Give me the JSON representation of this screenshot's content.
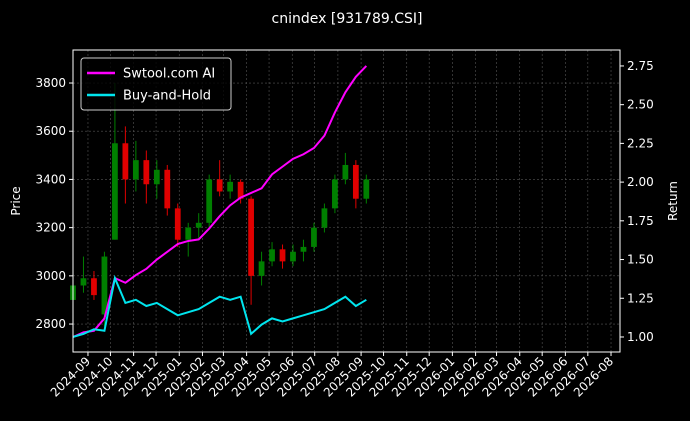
{
  "chart_data": {
    "type": "candlestick",
    "title": "cnindex [931789.CSI]",
    "ylabel": "Price",
    "y2label": "Return",
    "x": [
      "2024-08-12",
      "2024-08-26",
      "2024-09-09",
      "2024-09-23",
      "2024-10-07",
      "2024-10-21",
      "2024-11-04",
      "2024-11-18",
      "2024-12-02",
      "2024-12-16",
      "2024-12-30",
      "2025-01-13",
      "2025-01-27",
      "2025-02-10",
      "2025-02-24",
      "2025-03-10",
      "2025-03-24",
      "2025-04-07",
      "2025-04-21",
      "2025-05-05",
      "2025-05-19",
      "2025-06-02",
      "2025-06-16",
      "2025-06-30",
      "2025-07-14",
      "2025-07-28",
      "2025-08-11",
      "2025-08-25",
      "2025-09-08"
    ],
    "open": [
      2900,
      2960,
      2990,
      2840,
      3150,
      3550,
      3400,
      3480,
      3380,
      3440,
      3280,
      3150,
      3200,
      3220,
      3400,
      3350,
      3390,
      3320,
      3000,
      3060,
      3110,
      3060,
      3100,
      3120,
      3200,
      3280,
      3400,
      3460,
      3320
    ],
    "high": [
      3000,
      3080,
      3020,
      3100,
      3800,
      3620,
      3560,
      3520,
      3480,
      3460,
      3300,
      3220,
      3260,
      3420,
      3480,
      3420,
      3400,
      3330,
      3100,
      3140,
      3130,
      3130,
      3150,
      3220,
      3300,
      3420,
      3510,
      3480,
      3420
    ],
    "low": [
      2880,
      2930,
      2900,
      2790,
      3150,
      3300,
      3350,
      3300,
      3320,
      3250,
      3120,
      3080,
      3150,
      3200,
      3330,
      3320,
      3300,
      2880,
      2960,
      3040,
      3030,
      3040,
      3060,
      3100,
      3180,
      3260,
      3380,
      3280,
      3300
    ],
    "close": [
      2960,
      2990,
      2920,
      3080,
      3550,
      3400,
      3480,
      3380,
      3440,
      3280,
      3150,
      3200,
      3220,
      3400,
      3350,
      3390,
      3320,
      3000,
      3060,
      3110,
      3060,
      3100,
      3120,
      3200,
      3280,
      3400,
      3460,
      3320,
      3400
    ],
    "up_color": "#008000",
    "down_color": "#e00000",
    "series": [
      {
        "name": "Swtool.com AI",
        "color": "#ff00ff",
        "axis": "y2",
        "values": [
          1.0,
          1.03,
          1.04,
          1.12,
          1.38,
          1.35,
          1.4,
          1.44,
          1.5,
          1.55,
          1.6,
          1.62,
          1.63,
          1.7,
          1.78,
          1.85,
          1.9,
          1.93,
          1.96,
          2.05,
          2.1,
          2.15,
          2.18,
          2.22,
          2.3,
          2.45,
          2.58,
          2.68,
          2.75
        ]
      },
      {
        "name": "Buy-and-Hold",
        "color": "#00e5ee",
        "axis": "y2",
        "values": [
          1.0,
          1.02,
          1.05,
          1.04,
          1.38,
          1.22,
          1.24,
          1.2,
          1.22,
          1.18,
          1.14,
          1.16,
          1.18,
          1.22,
          1.26,
          1.24,
          1.26,
          1.02,
          1.08,
          1.12,
          1.1,
          1.12,
          1.14,
          1.16,
          1.18,
          1.22,
          1.26,
          1.2,
          1.24
        ]
      }
    ],
    "ylim": [
      2684,
      3937
    ],
    "yticks": [
      2800,
      3000,
      3200,
      3400,
      3600,
      3800
    ],
    "y2lim": [
      0.903,
      2.853
    ],
    "y2ticks": [
      {
        "value": 1,
        "label": "1.00"
      },
      1.25,
      {
        "value": 1.5,
        "label": "1.50"
      },
      1.75,
      {
        "value": 2,
        "label": "2.00"
      },
      2.25,
      {
        "value": 2.5,
        "label": "2.50"
      },
      2.75
    ],
    "xlim": [
      "2024-08-12",
      "2026-08-13"
    ],
    "xticks": [
      "2024-09",
      "2024-10",
      "2024-11",
      "2024-12",
      "2025-01",
      "2025-02",
      "2025-03",
      "2025-04",
      "2025-05",
      "2025-06",
      "2025-07",
      "2025-08",
      "2025-09",
      "2025-10",
      "2025-11",
      "2025-12",
      "2026-01",
      "2026-02",
      "2026-03",
      "2026-04",
      "2026-05",
      "2026-06",
      "2026-07",
      "2026-08"
    ],
    "grid": true,
    "legend": "upper left"
  }
}
